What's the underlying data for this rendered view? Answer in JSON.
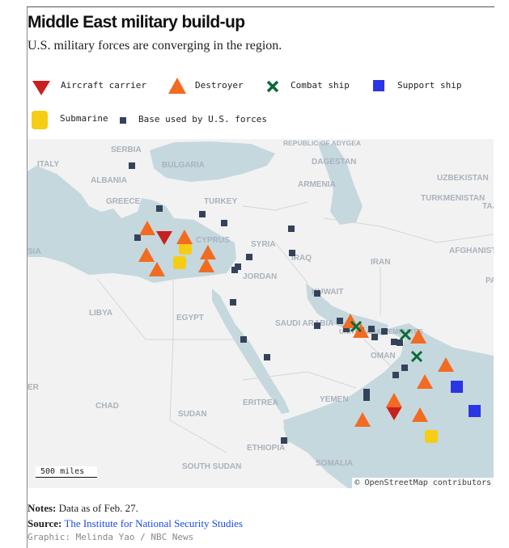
{
  "header": {
    "title": "Middle East military build-up",
    "subtitle": "U.S. military forces are converging in the region."
  },
  "legend": [
    {
      "label": "Aircraft carrier",
      "icon": "down-triangle",
      "color": "#c8201e"
    },
    {
      "label": "Destroyer",
      "icon": "up-triangle",
      "color": "#f26b21"
    },
    {
      "label": "Combat ship",
      "icon": "x-mark",
      "color": "#0b6a36"
    },
    {
      "label": "Support ship",
      "icon": "square",
      "color": "#2b35e3"
    },
    {
      "label": "Submarine",
      "icon": "rounded-square",
      "color": "#f5cd14"
    },
    {
      "label": "Base used by U.S. forces",
      "icon": "small-square",
      "color": "#34435a"
    }
  ],
  "map": {
    "labels": [
      "SERBIA",
      "ITALY",
      "ALBANIA",
      "GREECE",
      "TURKEY",
      "CYPRUS",
      "SYRIA",
      "JORDAN",
      "IRAQ",
      "IRAN",
      "KUWAIT",
      "SAUDI ARABIA",
      "UNITED ARAB EMIRATES",
      "OMAN",
      "YEMEN",
      "EGYPT",
      "LIBYA",
      "CHAD",
      "SUDAN",
      "ERITREA",
      "ETHIOPIA",
      "SOUTH SUDAN",
      "SOMALIA",
      "REPUBLIC OF ADYGEA",
      "DAGESTAN",
      "ARMENIA",
      "UZBEKISTAN",
      "TURKMENISTAN",
      "TAJIK",
      "AFGHANISTAN",
      "PAK",
      "BULGARIA",
      "SIA",
      "ER"
    ],
    "scale": "500 miles",
    "attribution": "© OpenStreetMap contributors",
    "water_color": "#c5d8de",
    "land_color": "#f2f2f2"
  },
  "footer": {
    "notes_label": "Notes:",
    "notes": " Data as of Feb. 27.",
    "source_label": "Source:",
    "source": "The Institute for National Security Studies",
    "credit": "Graphic: Melinda Yao / NBC News"
  }
}
